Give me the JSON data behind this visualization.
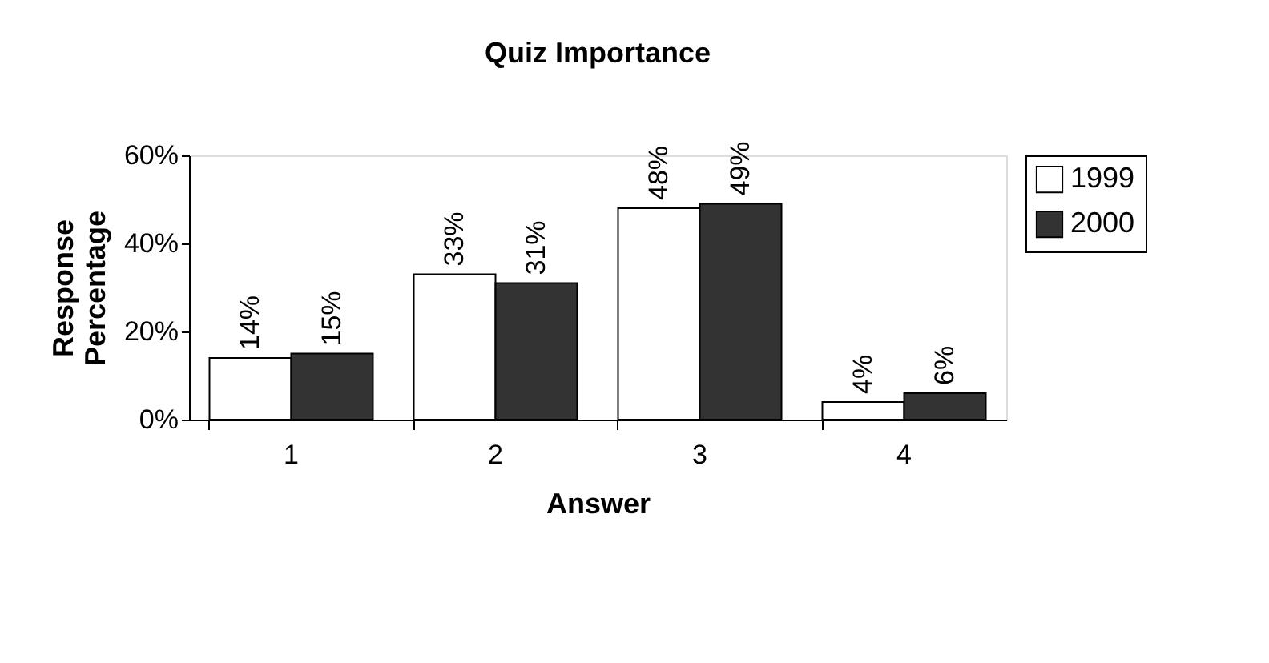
{
  "chart_data": {
    "type": "bar",
    "title": "Quiz Importance",
    "xlabel": "Answer",
    "ylabel": "Response Percentage",
    "categories": [
      "1",
      "2",
      "3",
      "4"
    ],
    "series": [
      {
        "name": "1999",
        "color": "#ffffff",
        "values": [
          14,
          33,
          48,
          4
        ],
        "value_labels": [
          "14%",
          "33%",
          "48%",
          "4%"
        ]
      },
      {
        "name": "2000",
        "color": "#333333",
        "values": [
          15,
          31,
          49,
          6
        ],
        "value_labels": [
          "15%",
          "31%",
          "49%",
          "6%"
        ]
      }
    ],
    "ylim": [
      0,
      60
    ],
    "yticks": [
      {
        "value": 0,
        "label": "0%"
      },
      {
        "value": 20,
        "label": "20%"
      },
      {
        "value": 40,
        "label": "40%"
      },
      {
        "value": 60,
        "label": "60%"
      }
    ],
    "grid": false,
    "legend": "right"
  }
}
